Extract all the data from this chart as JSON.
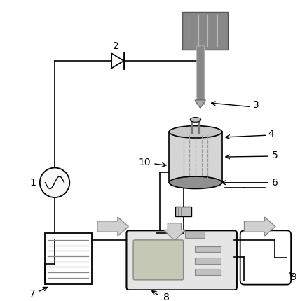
{
  "bg_color": "#ffffff",
  "lc": "#000000",
  "gray_box": "#888888",
  "gray_cyl": "#c0c0c0",
  "gray_ellipse_top": "#b0b0b0",
  "gray_ellipse_bot": "#909090",
  "gray_arrow": "#c0c0c0",
  "gray_dashed": "#aaaaaa",
  "gray_screen": "#c8c8b8",
  "gray_beaker": "#f0f0f0",
  "gray_bag": "#f0f0f0",
  "gray_device": "#e8e8e8",
  "diode_fill": "#e8e8e8",
  "ac_fill": "#f8f8f8",
  "probe_box_fill": "#888888",
  "probe_rod_color": "#aaaaaa"
}
